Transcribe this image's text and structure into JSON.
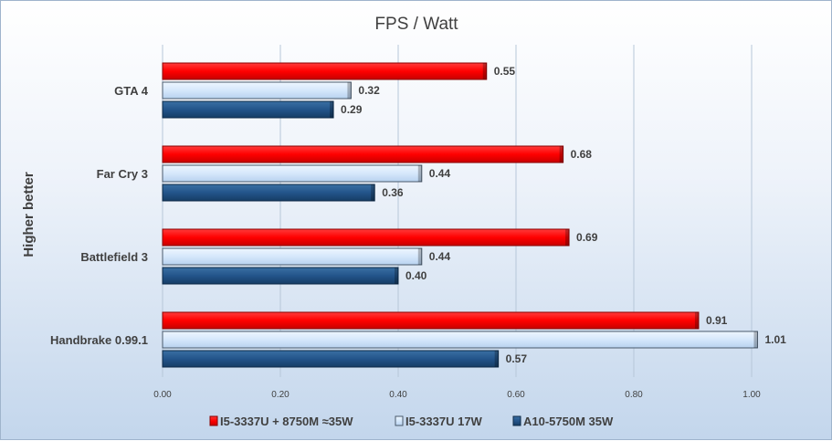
{
  "chart_data": {
    "type": "bar",
    "orientation": "horizontal",
    "title": "FPS / Watt",
    "ylabel": "Higher better",
    "xlabel": "",
    "categories": [
      "GTA 4",
      "Far Cry 3",
      "Battlefield 3",
      "Handbrake 0.99.1"
    ],
    "series": [
      {
        "name": "I5-3337U + 8750M ≈35W",
        "values": [
          0.55,
          0.68,
          0.69,
          0.91
        ],
        "labels": [
          "0.55",
          "0.68",
          "0.69",
          "0.91"
        ],
        "color": "#ff0000"
      },
      {
        "name": "I5-3337U 17W",
        "values": [
          0.32,
          0.44,
          0.44,
          1.01
        ],
        "labels": [
          "0.32",
          "0.44",
          "0.44",
          "1.01"
        ],
        "color": "#cfe4fb"
      },
      {
        "name": "A10-5750M 35W",
        "values": [
          0.29,
          0.36,
          0.4,
          0.57
        ],
        "labels": [
          "0.29",
          "0.36",
          "0.40",
          "0.57"
        ],
        "color": "#1f4e79"
      }
    ],
    "xlim": [
      0,
      1.13
    ],
    "ticks": [
      "0.00",
      "0.20",
      "0.40",
      "0.60",
      "0.80",
      "1.00"
    ],
    "grid": true,
    "legend_position": "bottom"
  }
}
